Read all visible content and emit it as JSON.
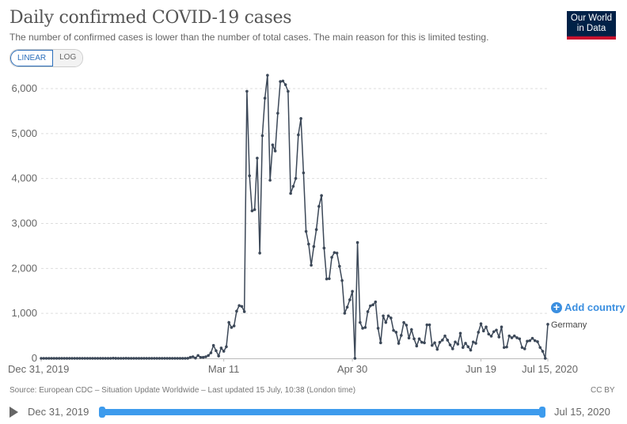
{
  "header": {
    "title": "Daily confirmed COVID-19 cases",
    "subtitle": "The number of confirmed cases is lower than the number of total cases. The main reason for this is limited testing.",
    "logo": "Our World in Data"
  },
  "controls": {
    "linear": "LINEAR",
    "log": "LOG",
    "add_country": "Add country",
    "add_icon": "plus-circle-icon"
  },
  "footer": {
    "source": "Source: European CDC – Situation Update Worldwide – Last updated 15 July, 10:38 (London time)",
    "license": "CC BY"
  },
  "timeline": {
    "start": "Dec 31, 2019",
    "end": "Jul 15, 2020",
    "play_icon": "play-icon",
    "range_fraction": [
      0,
      1
    ]
  },
  "colors": {
    "line": "#3c4858",
    "accent": "#3d9bed",
    "logo_bg": "#002147",
    "logo_bar": "#c8102e"
  },
  "chart_data": {
    "type": "line",
    "title": "Daily confirmed COVID-19 cases",
    "xlabel": "",
    "ylabel": "",
    "x_start": "2019-12-31",
    "x_end": "2020-07-15",
    "xlim_days": [
      0,
      197
    ],
    "ylim": [
      0,
      6000
    ],
    "yticks": [
      0,
      1000,
      2000,
      3000,
      4000,
      5000,
      6000
    ],
    "ytick_labels": [
      "0",
      "1,000",
      "2,000",
      "3,000",
      "4,000",
      "5,000",
      "6,000"
    ],
    "xticks": [
      {
        "day": 0,
        "label": "Dec 31, 2019"
      },
      {
        "day": 71,
        "label": "Mar 11"
      },
      {
        "day": 121,
        "label": "Apr 30"
      },
      {
        "day": 171,
        "label": "Jun 19"
      },
      {
        "day": 197,
        "label": "Jul 15, 2020"
      }
    ],
    "grid": "horizontal-dashed",
    "series": [
      {
        "name": "Germany",
        "values": [
          0,
          0,
          0,
          0,
          0,
          0,
          0,
          0,
          0,
          0,
          0,
          0,
          0,
          0,
          0,
          0,
          0,
          0,
          0,
          0,
          0,
          0,
          0,
          0,
          0,
          0,
          0,
          0,
          4,
          1,
          0,
          0,
          0,
          2,
          0,
          0,
          0,
          0,
          0,
          0,
          0,
          0,
          0,
          0,
          0,
          0,
          0,
          0,
          0,
          0,
          0,
          0,
          0,
          0,
          0,
          0,
          0,
          2,
          23,
          35,
          6,
          64,
          23,
          23,
          35,
          64,
          123,
          287,
          170,
          52,
          229,
          158,
          258,
          798,
          687,
          722,
          1050,
          1173,
          1155,
          1039,
          5940,
          4061,
          3280,
          3309,
          4454,
          2342,
          4953,
          5787,
          6297,
          3961,
          4748,
          4613,
          5452,
          6157,
          6169,
          6087,
          5939,
          3668,
          3826,
          4002,
          4971,
          5334,
          4126,
          2823,
          2541,
          2072,
          2488,
          2864,
          3380,
          3621,
          2453,
          1766,
          1772,
          2248,
          2353,
          2342,
          2048,
          1731,
          1003,
          1139,
          1303,
          1490,
          0,
          2576,
          798,
          669,
          687,
          1039,
          1168,
          1191,
          1256,
          669,
          346,
          945,
          798,
          945,
          898,
          622,
          581,
          335,
          511,
          798,
          739,
          452,
          640,
          434,
          276,
          434,
          358,
          346,
          745,
          745,
          288,
          346,
          200,
          358,
          405,
          499,
          405,
          299,
          211,
          364,
          317,
          558,
          241,
          335,
          258,
          182,
          364,
          335,
          581,
          769,
          610,
          698,
          540,
          493,
          593,
          628,
          475,
          698,
          241,
          252,
          499,
          458,
          499,
          458,
          434,
          241,
          211,
          381,
          393,
          446,
          393,
          370,
          241,
          158,
          0,
          757
        ]
      }
    ]
  }
}
